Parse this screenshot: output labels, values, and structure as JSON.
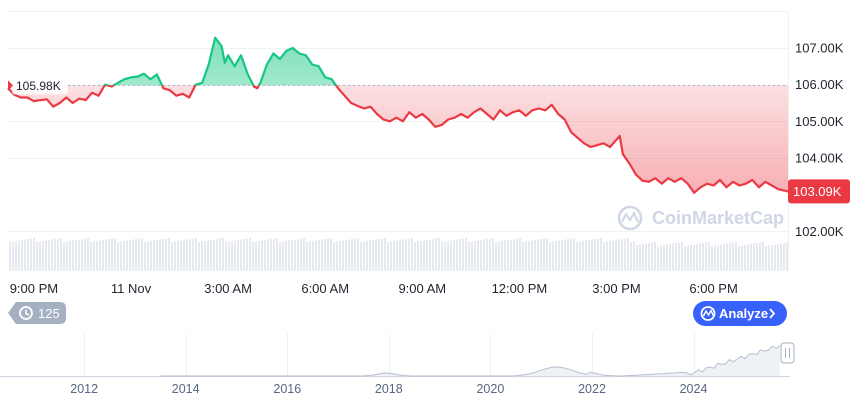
{
  "chart_data": {
    "type": "area",
    "baseline": 105.98,
    "baseline_label": "105.98K",
    "current_label": "103.09K",
    "ylim": [
      101.0,
      108.2
    ],
    "y_ticks": [
      "107.00K",
      "106.00K",
      "105.00K",
      "104.00K",
      "102.00K"
    ],
    "y_tick_values": [
      107,
      106,
      105,
      104,
      102
    ],
    "x_ticks": [
      "9:00 PM",
      "11 Nov",
      "3:00 AM",
      "6:00 AM",
      "9:00 AM",
      "12:00 PM",
      "3:00 PM",
      "6:00 PM"
    ],
    "x_tick_hours": [
      0,
      3,
      6,
      9,
      12,
      15,
      18,
      21
    ],
    "x_range_hours": [
      -0.8,
      23.3
    ],
    "series": [
      {
        "values": [
          [
            -0.8,
            105.9
          ],
          [
            -0.6,
            105.72
          ],
          [
            -0.4,
            105.65
          ],
          [
            -0.2,
            105.65
          ],
          [
            0.0,
            105.55
          ],
          [
            0.2,
            105.58
          ],
          [
            0.4,
            105.6
          ],
          [
            0.6,
            105.4
          ],
          [
            0.8,
            105.5
          ],
          [
            1.0,
            105.65
          ],
          [
            1.2,
            105.5
          ],
          [
            1.4,
            105.62
          ],
          [
            1.6,
            105.58
          ],
          [
            1.8,
            105.78
          ],
          [
            2.0,
            105.7
          ],
          [
            2.2,
            106.0
          ],
          [
            2.4,
            105.95
          ],
          [
            2.6,
            106.05
          ],
          [
            2.8,
            106.15
          ],
          [
            3.0,
            106.2
          ],
          [
            3.2,
            106.22
          ],
          [
            3.4,
            106.3
          ],
          [
            3.6,
            106.15
          ],
          [
            3.8,
            106.28
          ],
          [
            4.0,
            105.9
          ],
          [
            4.2,
            105.85
          ],
          [
            4.4,
            105.7
          ],
          [
            4.6,
            105.75
          ],
          [
            4.8,
            105.65
          ],
          [
            5.0,
            106.0
          ],
          [
            5.2,
            106.05
          ],
          [
            5.4,
            106.55
          ],
          [
            5.6,
            107.28
          ],
          [
            5.8,
            107.05
          ],
          [
            5.9,
            106.6
          ],
          [
            6.0,
            106.8
          ],
          [
            6.2,
            106.5
          ],
          [
            6.4,
            106.8
          ],
          [
            6.6,
            106.3
          ],
          [
            6.8,
            105.95
          ],
          [
            6.9,
            105.9
          ],
          [
            7.0,
            106.05
          ],
          [
            7.2,
            106.55
          ],
          [
            7.4,
            106.85
          ],
          [
            7.6,
            106.7
          ],
          [
            7.8,
            106.92
          ],
          [
            8.0,
            107.0
          ],
          [
            8.2,
            106.85
          ],
          [
            8.4,
            106.8
          ],
          [
            8.6,
            106.55
          ],
          [
            8.8,
            106.5
          ],
          [
            9.0,
            106.2
          ],
          [
            9.2,
            106.15
          ],
          [
            9.4,
            105.9
          ],
          [
            9.6,
            105.7
          ],
          [
            9.8,
            105.5
          ],
          [
            10.0,
            105.42
          ],
          [
            10.2,
            105.35
          ],
          [
            10.4,
            105.4
          ],
          [
            10.6,
            105.2
          ],
          [
            10.8,
            105.05
          ],
          [
            11.0,
            105.0
          ],
          [
            11.2,
            105.1
          ],
          [
            11.4,
            105.0
          ],
          [
            11.6,
            105.25
          ],
          [
            11.8,
            105.1
          ],
          [
            12.0,
            105.2
          ],
          [
            12.2,
            105.05
          ],
          [
            12.4,
            104.85
          ],
          [
            12.6,
            104.9
          ],
          [
            12.8,
            105.05
          ],
          [
            13.0,
            105.1
          ],
          [
            13.2,
            105.2
          ],
          [
            13.4,
            105.1
          ],
          [
            13.6,
            105.25
          ],
          [
            13.8,
            105.35
          ],
          [
            14.0,
            105.2
          ],
          [
            14.2,
            105.05
          ],
          [
            14.4,
            105.3
          ],
          [
            14.6,
            105.15
          ],
          [
            14.8,
            105.25
          ],
          [
            15.0,
            105.3
          ],
          [
            15.2,
            105.15
          ],
          [
            15.4,
            105.3
          ],
          [
            15.6,
            105.35
          ],
          [
            15.8,
            105.3
          ],
          [
            16.0,
            105.45
          ],
          [
            16.2,
            105.2
          ],
          [
            16.4,
            105.05
          ],
          [
            16.6,
            104.7
          ],
          [
            16.8,
            104.55
          ],
          [
            17.0,
            104.4
          ],
          [
            17.2,
            104.3
          ],
          [
            17.4,
            104.35
          ],
          [
            17.6,
            104.4
          ],
          [
            17.8,
            104.3
          ],
          [
            18.0,
            104.5
          ],
          [
            18.1,
            104.6
          ],
          [
            18.2,
            104.1
          ],
          [
            18.4,
            103.85
          ],
          [
            18.6,
            103.55
          ],
          [
            18.8,
            103.38
          ],
          [
            19.0,
            103.35
          ],
          [
            19.2,
            103.45
          ],
          [
            19.4,
            103.3
          ],
          [
            19.6,
            103.45
          ],
          [
            19.8,
            103.35
          ],
          [
            20.0,
            103.45
          ],
          [
            20.2,
            103.3
          ],
          [
            20.4,
            103.05
          ],
          [
            20.6,
            103.2
          ],
          [
            20.8,
            103.3
          ],
          [
            21.0,
            103.25
          ],
          [
            21.2,
            103.4
          ],
          [
            21.4,
            103.2
          ],
          [
            21.6,
            103.35
          ],
          [
            21.8,
            103.25
          ],
          [
            22.0,
            103.3
          ],
          [
            22.2,
            103.4
          ],
          [
            22.4,
            103.2
          ],
          [
            22.6,
            103.35
          ],
          [
            22.8,
            103.25
          ],
          [
            23.0,
            103.15
          ],
          [
            23.3,
            103.09
          ]
        ]
      }
    ],
    "volume_bars_count": 260,
    "grid": true,
    "legend": "none"
  },
  "watermark": "CoinMarketCap",
  "history": {
    "count": "125",
    "icon": "history-icon"
  },
  "analyze": {
    "label": "Analyze",
    "icon": "coinmarketcap-logo-icon",
    "chevron": "chevron-right-icon"
  },
  "navigator": {
    "year_ticks": [
      "2012",
      "2014",
      "2016",
      "2018",
      "2020",
      "2022",
      "2024"
    ],
    "year_values": [
      2012,
      2014,
      2016,
      2018,
      2020,
      2022,
      2024
    ],
    "year_range": [
      2010.5,
      2025.9
    ],
    "handle_icon": "drag-handle-icon"
  },
  "colors": {
    "up": "#16c784",
    "down": "#ea3943",
    "grid": "#eff2f5",
    "badge_bg": "#a6b0c3",
    "analyze_bg": "#3861fb"
  }
}
